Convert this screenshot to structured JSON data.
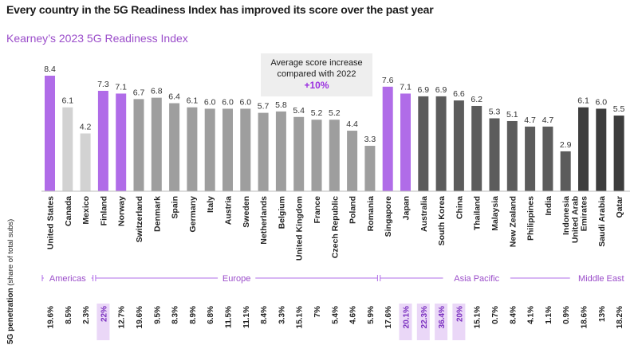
{
  "title": "Every country in the 5G Readiness Index has improved its score over the past year",
  "subtitle": "Kearney’s 2023 5G Readiness Index",
  "annotation": {
    "line1": "Average score increase",
    "line2": "compared with 2022",
    "value": "+10%"
  },
  "penetration_label": {
    "main": "5G penetration",
    "sub": "(share of total subs)"
  },
  "colors": {
    "purple": "#b06ce8",
    "light_gray": "#d2d2d2",
    "mid_gray": "#9e9e9e",
    "dark_gray": "#5c5c5c",
    "darkest_gray": "#3d3d3d",
    "region_line": "#b06ce8",
    "highlight_bg": "#ead7f7",
    "highlight_text": "#7a2fbf"
  },
  "chart_data": {
    "type": "bar",
    "title": "Kearney’s 2023 5G Readiness Index",
    "ylim": [
      0,
      8.4
    ],
    "categories": [
      "United States",
      "Canada",
      "Mexico",
      "Finland",
      "Norway",
      "Switzerland",
      "Denmark",
      "Spain",
      "Germany",
      "Italy",
      "Austria",
      "Sweden",
      "Netherlands",
      "Belgium",
      "United Kingdom",
      "France",
      "Czech Republic",
      "Poland",
      "Romania",
      "Singapore",
      "Japan",
      "Australia",
      "South Korea",
      "China",
      "Thailand",
      "Malaysia",
      "New Zealand",
      "Philippines",
      "India",
      "Indonesia",
      "United Arab Emirates",
      "Saudi Arabia",
      "Qatar"
    ],
    "category_lines": [
      [
        "United States"
      ],
      [
        "Canada"
      ],
      [
        "Mexico"
      ],
      [
        "Finland"
      ],
      [
        "Norway"
      ],
      [
        "Switzerland"
      ],
      [
        "Denmark"
      ],
      [
        "Spain"
      ],
      [
        "Germany"
      ],
      [
        "Italy"
      ],
      [
        "Austria"
      ],
      [
        "Sweden"
      ],
      [
        "Netherlands"
      ],
      [
        "Belgium"
      ],
      [
        "United Kingdom"
      ],
      [
        "France"
      ],
      [
        "Czech Republic"
      ],
      [
        "Poland"
      ],
      [
        "Romania"
      ],
      [
        "Singapore"
      ],
      [
        "Japan"
      ],
      [
        "Australia"
      ],
      [
        "South Korea"
      ],
      [
        "China"
      ],
      [
        "Thailand"
      ],
      [
        "Malaysia"
      ],
      [
        "New Zealand"
      ],
      [
        "Philippines"
      ],
      [
        "India"
      ],
      [
        "Indonesia"
      ],
      [
        "United Arab",
        "Emirates"
      ],
      [
        "Saudi Arabia"
      ],
      [
        "Qatar"
      ]
    ],
    "values": [
      8.4,
      6.1,
      4.2,
      7.3,
      7.1,
      6.7,
      6.8,
      6.4,
      6.1,
      6.0,
      6.0,
      6.0,
      5.7,
      5.8,
      5.4,
      5.2,
      5.2,
      4.4,
      3.3,
      7.6,
      7.1,
      6.9,
      6.9,
      6.6,
      6.2,
      5.3,
      5.1,
      4.7,
      4.7,
      2.9,
      6.1,
      6.0,
      5.5
    ],
    "value_labels": [
      "8.4",
      "6.1",
      "4.2",
      "7.3",
      "7.1",
      "6.7",
      "6.8",
      "6.4",
      "6.1",
      "6.0",
      "6.0",
      "6.0",
      "5.7",
      "5.8",
      "5.4",
      "5.2",
      "5.2",
      "4.4",
      "3.3",
      "7.6",
      "7.1",
      "6.9",
      "6.9",
      "6.6",
      "6.2",
      "5.3",
      "5.1",
      "4.7",
      "4.7",
      "2.9",
      "6.1",
      "6.0",
      "5.5"
    ],
    "bar_colors": [
      "purple",
      "light_gray",
      "light_gray",
      "purple",
      "purple",
      "mid_gray",
      "mid_gray",
      "mid_gray",
      "mid_gray",
      "mid_gray",
      "mid_gray",
      "mid_gray",
      "mid_gray",
      "mid_gray",
      "mid_gray",
      "mid_gray",
      "mid_gray",
      "mid_gray",
      "mid_gray",
      "purple",
      "purple",
      "dark_gray",
      "dark_gray",
      "dark_gray",
      "dark_gray",
      "dark_gray",
      "dark_gray",
      "dark_gray",
      "dark_gray",
      "dark_gray",
      "darkest_gray",
      "darkest_gray",
      "darkest_gray"
    ],
    "penetration": [
      "19.6%",
      "8.5%",
      "2.3%",
      "22%",
      "12.7%",
      "19.6%",
      "9.5%",
      "8.3%",
      "8.9%",
      "6.8%",
      "11.5%",
      "11.1%",
      "8.4%",
      "3.3%",
      "15.1%",
      "7%",
      "5.4%",
      "4.6%",
      "5.9%",
      "17.6%",
      "20.1%",
      "22.3%",
      "36.4%",
      "20%",
      "15.1%",
      "0.7%",
      "8.4%",
      "4.1%",
      "1.1%",
      "0.9%",
      "18.6%",
      "13%",
      "18.2%"
    ],
    "penetration_highlight": [
      false,
      false,
      false,
      true,
      false,
      false,
      false,
      false,
      false,
      false,
      false,
      false,
      false,
      false,
      false,
      false,
      false,
      false,
      false,
      false,
      true,
      true,
      true,
      true,
      false,
      false,
      false,
      false,
      false,
      false,
      false,
      false,
      false
    ],
    "regions": [
      {
        "name": "Americas",
        "start": 0,
        "end": 2
      },
      {
        "name": "Europe",
        "start": 3,
        "end": 18
      },
      {
        "name": "Asia Pacific",
        "start": 19,
        "end": 29
      },
      {
        "name": "Middle East",
        "start": 30,
        "end": 32
      }
    ]
  }
}
